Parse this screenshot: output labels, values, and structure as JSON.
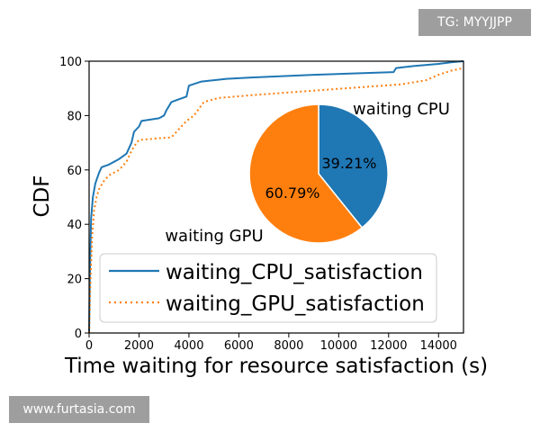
{
  "watermarks": {
    "top_right": "TG: MYYJJPP",
    "bottom_left": "www.furtasia.com"
  },
  "colors": {
    "cpu": "#1f77b4",
    "gpu": "#ff7f0e",
    "axis": "#000000"
  },
  "chart_data": [
    {
      "type": "line",
      "title": "",
      "xlabel": "Time waiting for resource satisfaction (s)",
      "ylabel": "CDF",
      "xlim": [
        0,
        15000
      ],
      "ylim": [
        0,
        100
      ],
      "xticks": [
        0,
        2000,
        4000,
        6000,
        8000,
        10000,
        12000,
        14000
      ],
      "yticks": [
        0,
        20,
        40,
        60,
        80,
        100
      ],
      "grid": false,
      "legend_position": "lower-right",
      "series": [
        {
          "name": "waiting_CPU_satisfaction",
          "style": "solid",
          "color": "#1f77b4",
          "points": [
            [
              0,
              0
            ],
            [
              30,
              20
            ],
            [
              80,
              42
            ],
            [
              150,
              50
            ],
            [
              250,
              55
            ],
            [
              400,
              59
            ],
            [
              500,
              61
            ],
            [
              800,
              62
            ],
            [
              1200,
              64
            ],
            [
              1500,
              66
            ],
            [
              1700,
              70
            ],
            [
              1800,
              74
            ],
            [
              2000,
              76
            ],
            [
              2100,
              78
            ],
            [
              2800,
              79
            ],
            [
              3000,
              80
            ],
            [
              3100,
              82
            ],
            [
              3300,
              85
            ],
            [
              3900,
              87
            ],
            [
              4000,
              91
            ],
            [
              4500,
              92.5
            ],
            [
              5500,
              93.5
            ],
            [
              6500,
              94
            ],
            [
              9000,
              95
            ],
            [
              12200,
              96
            ],
            [
              12300,
              97.5
            ],
            [
              13000,
              98.2
            ],
            [
              14000,
              99
            ],
            [
              14500,
              99.6
            ],
            [
              15000,
              100
            ]
          ]
        },
        {
          "name": "waiting_GPU_satisfaction",
          "style": "dotted",
          "color": "#ff7f0e",
          "points": [
            [
              0,
              0
            ],
            [
              50,
              18
            ],
            [
              120,
              35
            ],
            [
              200,
              45
            ],
            [
              300,
              50
            ],
            [
              400,
              53
            ],
            [
              600,
              56
            ],
            [
              800,
              58
            ],
            [
              1200,
              60
            ],
            [
              1500,
              63
            ],
            [
              1700,
              67
            ],
            [
              1900,
              70
            ],
            [
              2000,
              71
            ],
            [
              2600,
              71.5
            ],
            [
              3300,
              72
            ],
            [
              3600,
              75
            ],
            [
              3900,
              78
            ],
            [
              4200,
              80
            ],
            [
              4600,
              85
            ],
            [
              5200,
              86.5
            ],
            [
              6500,
              87.5
            ],
            [
              8000,
              88.5
            ],
            [
              9500,
              89.5
            ],
            [
              11000,
              90.5
            ],
            [
              12500,
              91.5
            ],
            [
              13500,
              93
            ],
            [
              14000,
              95
            ],
            [
              14500,
              96.5
            ],
            [
              15000,
              97.5
            ]
          ]
        }
      ]
    },
    {
      "type": "pie",
      "slices": [
        {
          "label": "waiting CPU",
          "value": 39.21,
          "value_label": "39.21%",
          "color": "#1f77b4"
        },
        {
          "label": "waiting GPU",
          "value": 60.79,
          "value_label": "60.79%",
          "color": "#ff7f0e"
        }
      ]
    }
  ]
}
